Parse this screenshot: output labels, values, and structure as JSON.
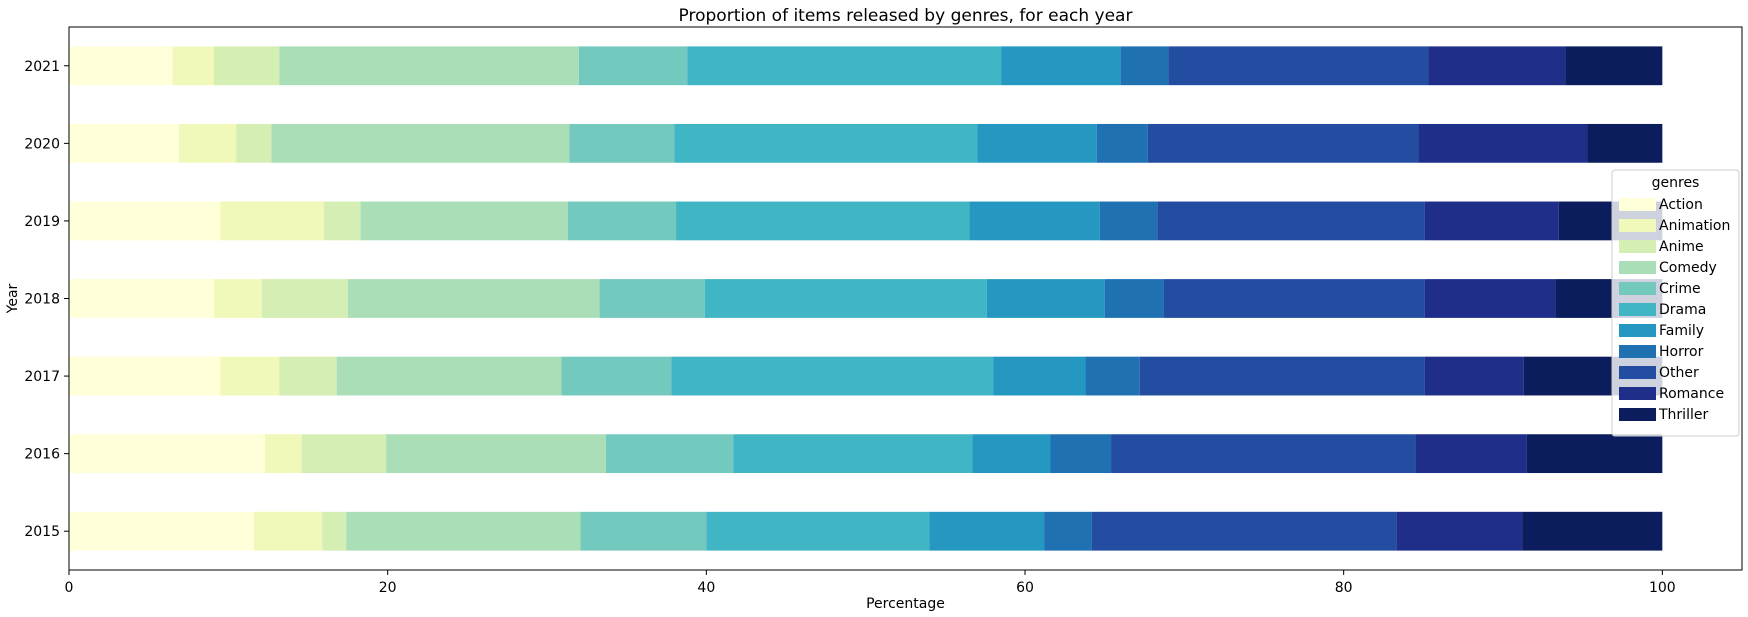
{
  "chart_data": {
    "type": "bar",
    "orientation": "horizontal",
    "stacked": true,
    "title": "Proportion of items released by genres, for each year",
    "xlabel": "Percentage",
    "ylabel": "Year",
    "xlim": [
      0,
      105
    ],
    "xticks": [
      0,
      20,
      40,
      60,
      80,
      100
    ],
    "grid": false,
    "categories": [
      "2021",
      "2020",
      "2019",
      "2018",
      "2017",
      "2016",
      "2015"
    ],
    "legend": {
      "title": "genres",
      "placement": "right"
    },
    "series": [
      {
        "name": "Action",
        "color": "#ffffd9",
        "values": [
          6.5,
          6.9,
          9.5,
          9.1,
          9.5,
          12.3,
          11.6
        ]
      },
      {
        "name": "Animation",
        "color": "#f0f9b9",
        "values": [
          2.6,
          3.6,
          6.5,
          3.0,
          3.7,
          2.3,
          4.3
        ]
      },
      {
        "name": "Anime",
        "color": "#d5eeb3",
        "values": [
          4.1,
          2.2,
          2.3,
          5.4,
          3.6,
          5.3,
          1.5
        ]
      },
      {
        "name": "Comedy",
        "color": "#aadeb7",
        "values": [
          18.8,
          18.7,
          13.0,
          15.8,
          14.1,
          13.8,
          14.7
        ]
      },
      {
        "name": "Crime",
        "color": "#73c9bd",
        "values": [
          6.8,
          6.6,
          6.8,
          6.6,
          6.9,
          8.0,
          7.9
        ]
      },
      {
        "name": "Drama",
        "color": "#40b5c4",
        "values": [
          19.7,
          19.0,
          18.4,
          17.7,
          20.2,
          15.0,
          14.0
        ]
      },
      {
        "name": "Family",
        "color": "#2498c1",
        "values": [
          7.5,
          7.5,
          8.2,
          7.4,
          5.8,
          4.9,
          7.2
        ]
      },
      {
        "name": "Horror",
        "color": "#1f71b2",
        "values": [
          3.0,
          3.2,
          3.6,
          3.7,
          3.4,
          3.8,
          3.0
        ]
      },
      {
        "name": "Other",
        "color": "#234da0",
        "values": [
          16.3,
          17.0,
          16.8,
          16.4,
          17.9,
          19.1,
          19.1
        ]
      },
      {
        "name": "Romance",
        "color": "#1e2e89",
        "values": [
          8.6,
          10.6,
          8.4,
          8.2,
          6.2,
          7.0,
          7.9
        ]
      },
      {
        "name": "Thriller",
        "color": "#0b1d5c",
        "values": [
          6.1,
          4.7,
          6.5,
          6.7,
          8.7,
          8.5,
          8.8
        ]
      }
    ]
  }
}
